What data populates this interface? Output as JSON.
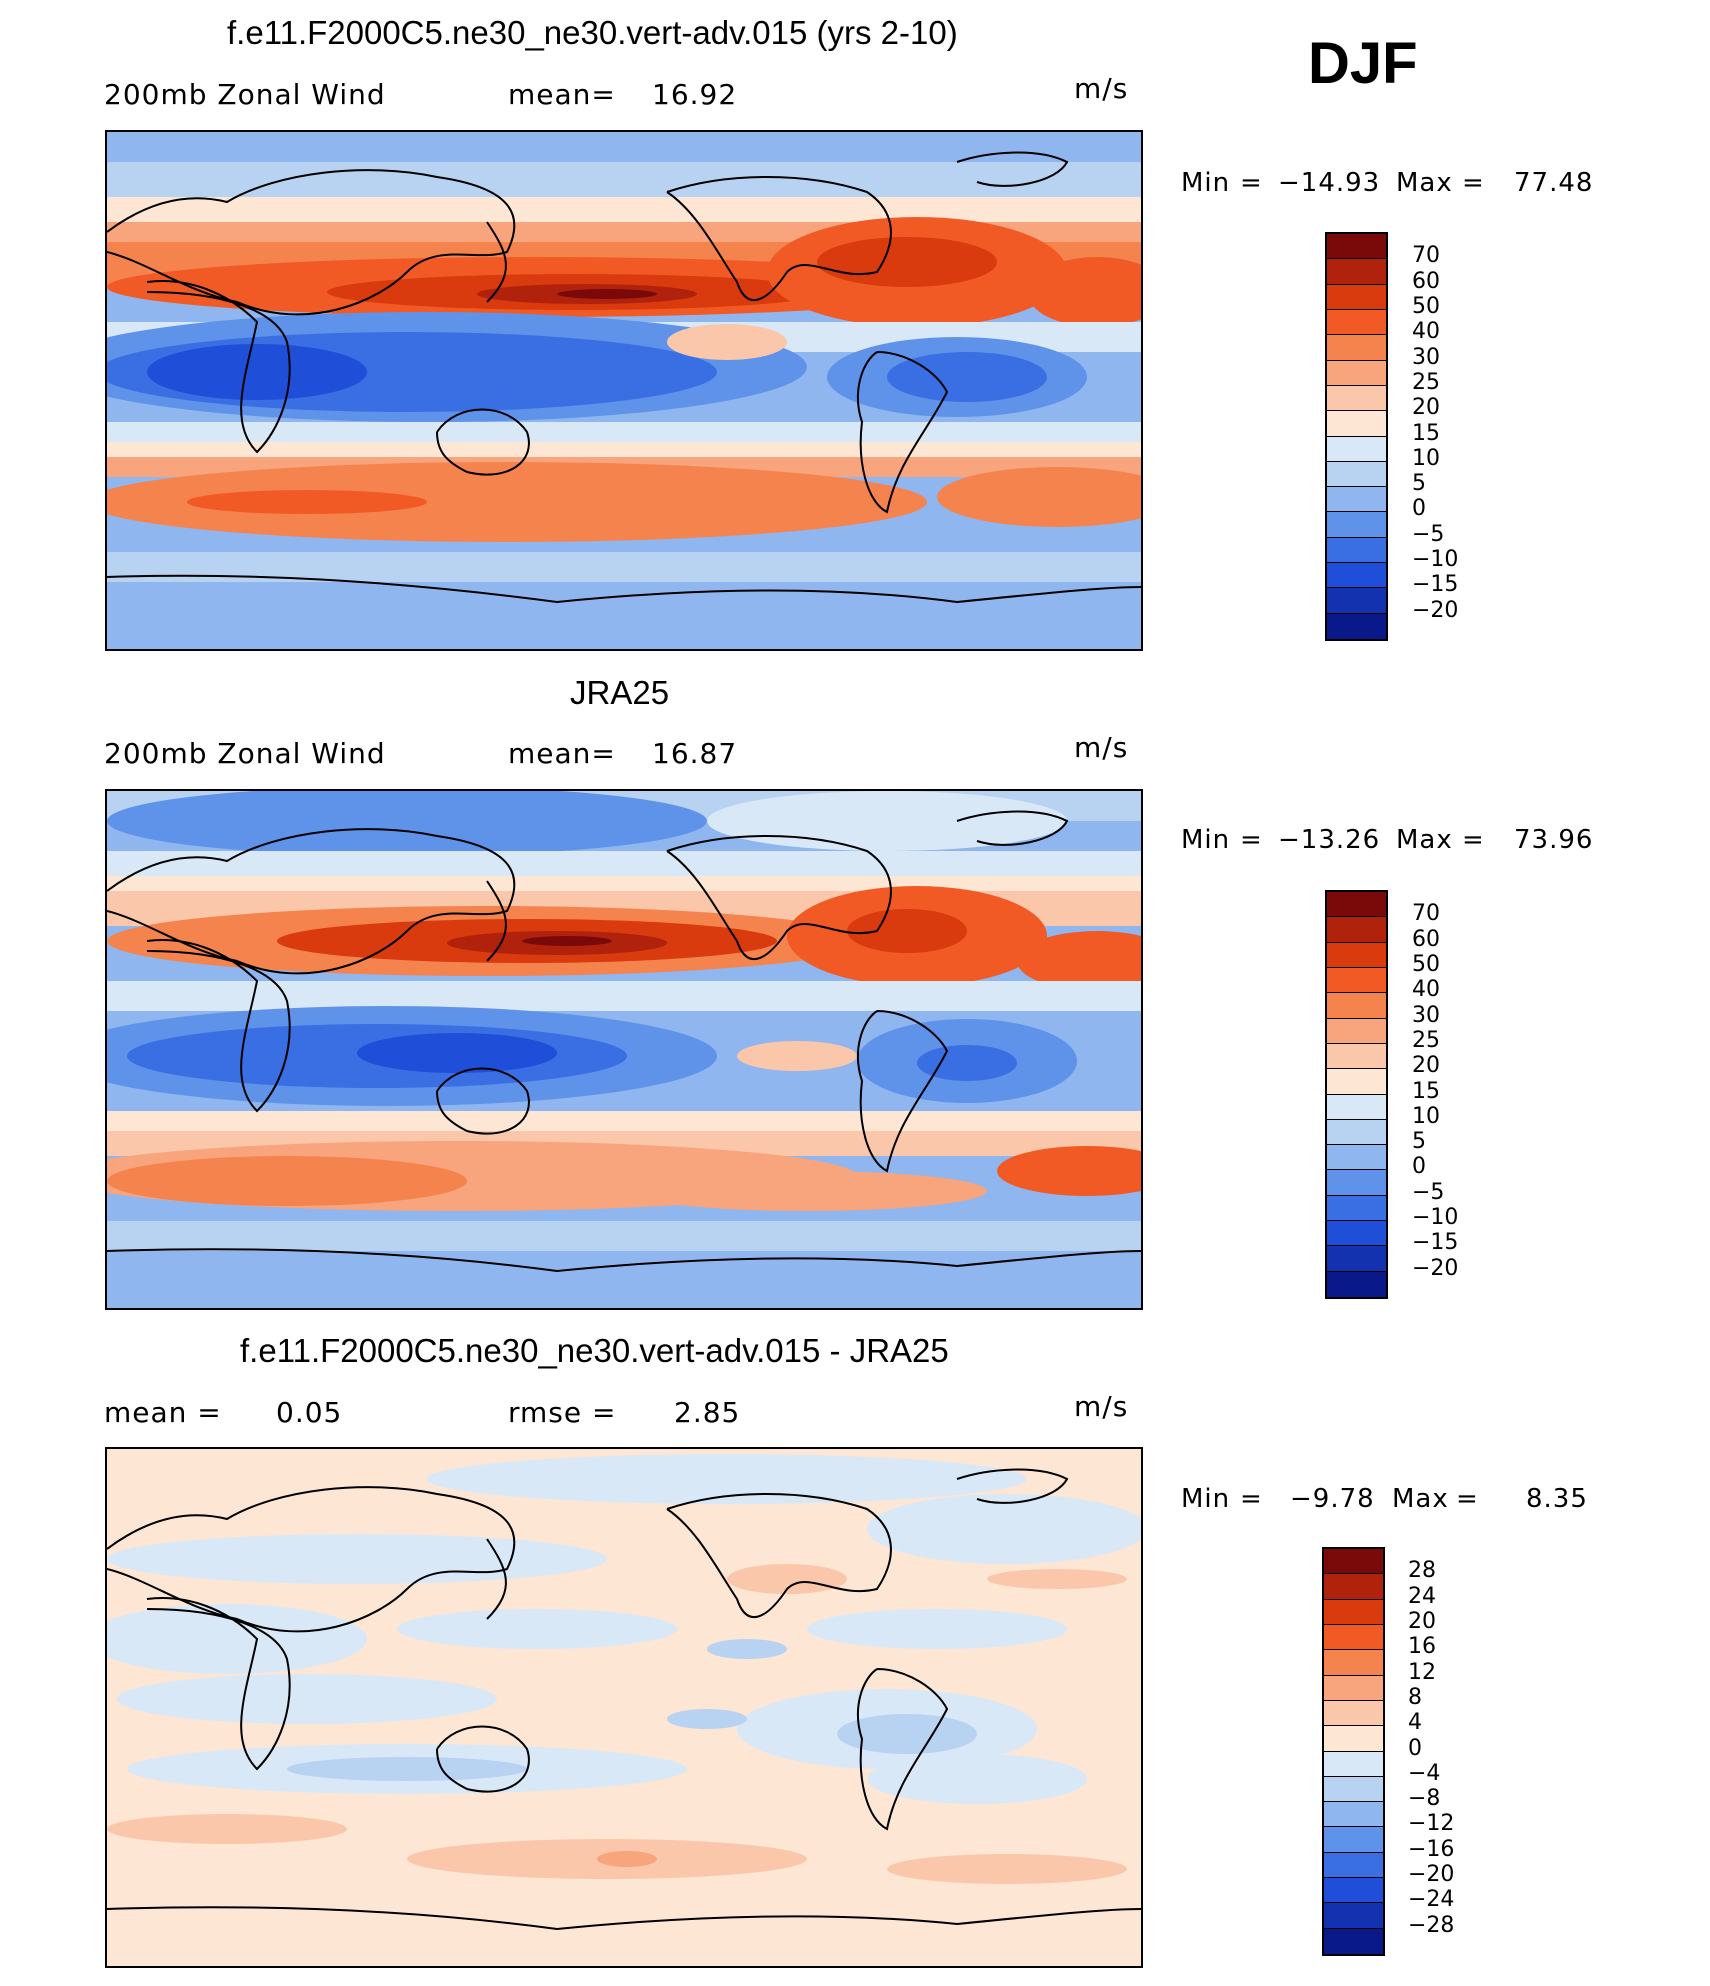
{
  "season": "DJF",
  "units": "m/s",
  "panels": [
    {
      "id": "model",
      "title": "f.e11.F2000C5.ne30_ne30.vert-adv.015 (yrs 2-10)",
      "left_label": "200mb Zonal Wind",
      "stat_label": "mean=",
      "stat_value": "16.92",
      "units": "m/s",
      "min_label": "Min",
      "min_value": "-14.93",
      "max_label": "Max",
      "max_value": "77.48",
      "colorbar_labels": [
        "70",
        "60",
        "50",
        "40",
        "30",
        "25",
        "20",
        "15",
        "10",
        "5",
        "0",
        "-5",
        "-10",
        "-15",
        "-20"
      ],
      "colorbar_colors": [
        "#7a0a0a",
        "#b0220b",
        "#d93a0e",
        "#f25a25",
        "#f5834e",
        "#f8a47c",
        "#fbc7aa",
        "#fde6d4",
        "#d9e8f7",
        "#b8d2f2",
        "#8fb6ee",
        "#5f93ea",
        "#3a6fe4",
        "#1f4fd8",
        "#1232b0",
        "#09198a"
      ]
    },
    {
      "id": "obs",
      "title": "JRA25",
      "left_label": "200mb Zonal Wind",
      "stat_label": "mean=",
      "stat_value": "16.87",
      "units": "m/s",
      "min_label": "Min",
      "min_value": "-13.26",
      "max_label": "Max",
      "max_value": "73.96",
      "colorbar_labels": [
        "70",
        "60",
        "50",
        "40",
        "30",
        "25",
        "20",
        "15",
        "10",
        "5",
        "0",
        "-5",
        "-10",
        "-15",
        "-20"
      ],
      "colorbar_colors": [
        "#7a0a0a",
        "#b0220b",
        "#d93a0e",
        "#f25a25",
        "#f5834e",
        "#f8a47c",
        "#fbc7aa",
        "#fde6d4",
        "#d9e8f7",
        "#b8d2f2",
        "#8fb6ee",
        "#5f93ea",
        "#3a6fe4",
        "#1f4fd8",
        "#1232b0",
        "#09198a"
      ]
    },
    {
      "id": "diff",
      "title": "f.e11.F2000C5.ne30_ne30.vert-adv.015 - JRA25",
      "left_label": "mean =",
      "left_value": "0.05",
      "stat_label": "rmse =",
      "stat_value": "2.85",
      "units": "m/s",
      "min_label": "Min",
      "min_value": "-9.78",
      "max_label": "Max",
      "max_value": "8.35",
      "colorbar_labels": [
        "28",
        "24",
        "20",
        "16",
        "12",
        "8",
        "4",
        "0",
        "-4",
        "-8",
        "-12",
        "-16",
        "-20",
        "-24",
        "-28"
      ],
      "colorbar_colors": [
        "#7a0a0a",
        "#b0220b",
        "#d93a0e",
        "#f25a25",
        "#f5834e",
        "#f8a47c",
        "#fbc7aa",
        "#fde6d4",
        "#d9e8f7",
        "#b8d2f2",
        "#8fb6ee",
        "#5f93ea",
        "#3a6fe4",
        "#1f4fd8",
        "#1232b0",
        "#09198a"
      ]
    }
  ]
}
